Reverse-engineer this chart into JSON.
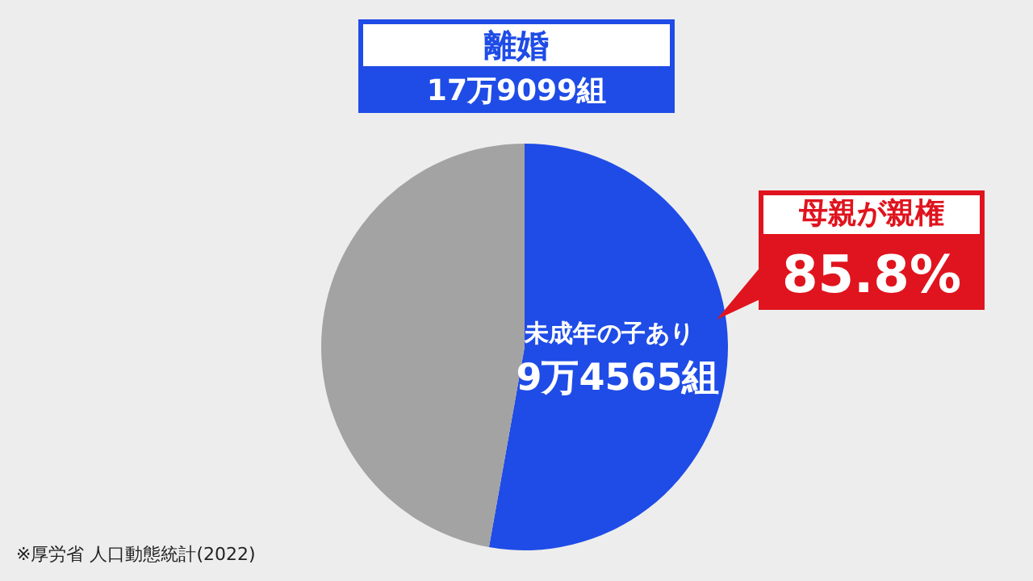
{
  "chart_data": {
    "type": "pie",
    "title": "離婚",
    "subtitle": "17万9099組",
    "categories": [
      "未成年の子あり",
      null
    ],
    "values": [
      52.8,
      47.2
    ],
    "colors": [
      "#1f4ce6",
      "#a3a3a3"
    ],
    "annotations": [
      "9万4565組",
      "母親が親権",
      "85.8%",
      "※厚労省 人口動態統計(2022)"
    ],
    "legend": false
  }
}
